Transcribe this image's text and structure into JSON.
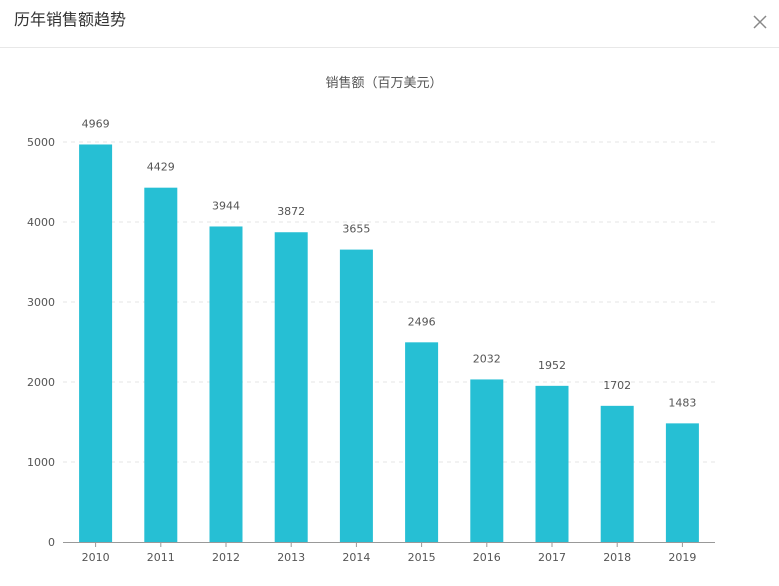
{
  "dialog": {
    "title": "历年销售额趋势",
    "close_icon": "close-icon"
  },
  "colors": {
    "bar": "#26bfd4",
    "grid": "#e6e6e6",
    "axis": "#999999"
  },
  "chart_data": {
    "type": "bar",
    "title": "销售额（百万美元）",
    "xlabel": "",
    "ylabel": "",
    "categories": [
      "2010",
      "2011",
      "2012",
      "2013",
      "2014",
      "2015",
      "2016",
      "2017",
      "2018",
      "2019"
    ],
    "values": [
      4969,
      4429,
      3944,
      3872,
      3655,
      2496,
      2032,
      1952,
      1702,
      1483
    ],
    "ylim": [
      0,
      5000
    ],
    "yticks": [
      0,
      1000,
      2000,
      3000,
      4000,
      5000
    ],
    "grid": true,
    "data_labels": true
  }
}
